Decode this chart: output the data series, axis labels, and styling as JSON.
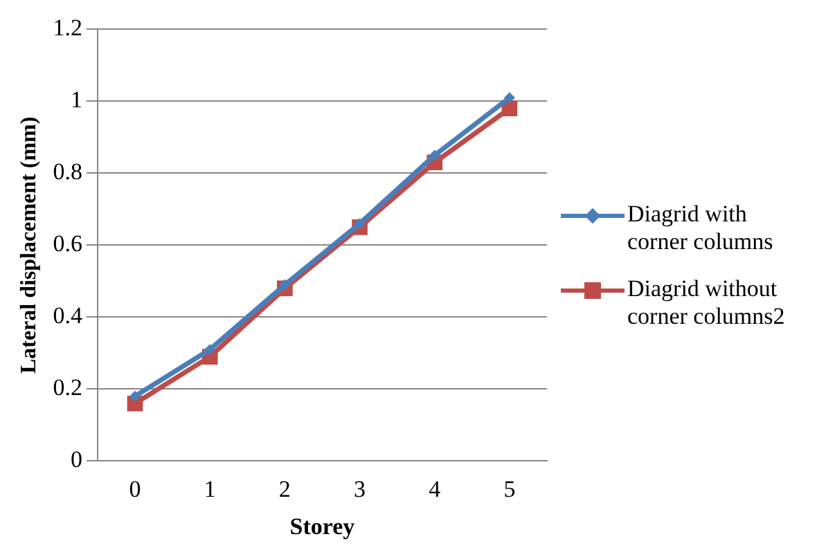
{
  "chart_data": {
    "type": "line",
    "xlabel": "Storey",
    "ylabel": "Lateral displacement (mm)",
    "categories": [
      "0",
      "1",
      "2",
      "3",
      "4",
      "5"
    ],
    "series": [
      {
        "name": "Diagrid with corner columns",
        "color": "#4a7ebb",
        "marker": "diamond",
        "values": [
          0.18,
          0.31,
          0.49,
          0.66,
          0.85,
          1.01
        ]
      },
      {
        "name": "Diagrid without corner columns2",
        "color": "#be4b48",
        "marker": "square",
        "values": [
          0.16,
          0.29,
          0.48,
          0.65,
          0.83,
          0.98
        ]
      }
    ],
    "ylim": [
      0,
      1.2
    ],
    "yticks": [
      0,
      0.2,
      0.4,
      0.6,
      0.8,
      1,
      1.2
    ],
    "grid": "y",
    "legend": "right",
    "line_style": "solid"
  }
}
